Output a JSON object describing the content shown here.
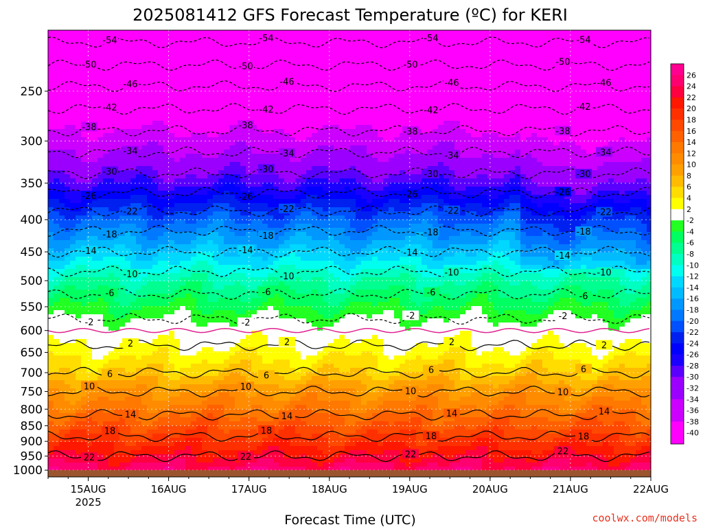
{
  "chart_data": {
    "type": "heatmap",
    "title": "2025081412 GFS Forecast Temperature (ºC) for KERI",
    "xlabel": "Forecast Time (UTC)",
    "ylabel": "",
    "credit": "coolwx.com/models",
    "x_ticks": [
      {
        "label": "15AUG",
        "sublabel": "2025",
        "hour": 12
      },
      {
        "label": "16AUG",
        "sublabel": "",
        "hour": 36
      },
      {
        "label": "17AUG",
        "sublabel": "",
        "hour": 60
      },
      {
        "label": "18AUG",
        "sublabel": "",
        "hour": 84
      },
      {
        "label": "19AUG",
        "sublabel": "",
        "hour": 108
      },
      {
        "label": "20AUG",
        "sublabel": "",
        "hour": 132
      },
      {
        "label": "21AUG",
        "sublabel": "",
        "hour": 156
      },
      {
        "label": "22AUG",
        "sublabel": "",
        "hour": 180
      }
    ],
    "x_range_hours": [
      0,
      180
    ],
    "y_levels_hpa": [
      250,
      300,
      350,
      400,
      450,
      500,
      550,
      600,
      650,
      700,
      750,
      800,
      850,
      900,
      950,
      1000
    ],
    "y_range_hpa": [
      200,
      1025
    ],
    "surface_level_hpa": 1000,
    "colorbar_ticks": [
      26,
      24,
      22,
      20,
      18,
      16,
      14,
      12,
      10,
      8,
      6,
      4,
      2,
      -2,
      -4,
      -6,
      -8,
      -10,
      -12,
      -14,
      -16,
      -18,
      -20,
      -22,
      -24,
      -26,
      -28,
      -30,
      -32,
      -34,
      -36,
      -38,
      -40
    ],
    "contour_levels_c": [
      22,
      18,
      14,
      10,
      6,
      2,
      -2,
      -6,
      -10,
      -14,
      -18,
      -22,
      -26,
      -30,
      -34,
      -38,
      -42,
      -46,
      -50,
      -54
    ],
    "temperature_profile": [
      {
        "p": 200,
        "t": -56
      },
      {
        "p": 250,
        "t": -45
      },
      {
        "p": 300,
        "t": -36
      },
      {
        "p": 350,
        "t": -28
      },
      {
        "p": 400,
        "t": -20
      },
      {
        "p": 450,
        "t": -14
      },
      {
        "p": 500,
        "t": -8
      },
      {
        "p": 550,
        "t": -4
      },
      {
        "p": 600,
        "t": 0
      },
      {
        "p": 650,
        "t": 3
      },
      {
        "p": 700,
        "t": 6
      },
      {
        "p": 750,
        "t": 10
      },
      {
        "p": 800,
        "t": 13
      },
      {
        "p": 850,
        "t": 16
      },
      {
        "p": 900,
        "t": 19
      },
      {
        "p": 950,
        "t": 22
      },
      {
        "p": 1000,
        "t": 25
      }
    ],
    "colors": {
      "surface": "#9b552e",
      "freezing_line": "#e0208f",
      "grid": "#ffffff"
    },
    "grid": true
  }
}
